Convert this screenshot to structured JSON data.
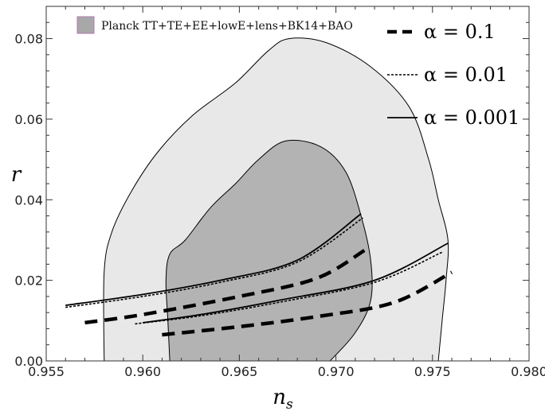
{
  "chart_data": {
    "type": "line",
    "xlabel": "n",
    "xlabel_sub": "s",
    "ylabel": "r",
    "xlim": [
      0.955,
      0.98
    ],
    "ylim": [
      0.0,
      0.088
    ],
    "x_ticks": [
      "0.955",
      "0.960",
      "0.965",
      "0.970",
      "0.975",
      "0.980"
    ],
    "y_ticks": [
      "0.00",
      "0.02",
      "0.04",
      "0.06",
      "0.08"
    ],
    "x_tick_values": [
      0.955,
      0.96,
      0.965,
      0.97,
      0.975,
      0.98
    ],
    "y_tick_values": [
      0.0,
      0.02,
      0.04,
      0.06,
      0.08
    ],
    "grid": false,
    "legend_position": "top",
    "colors": {
      "contour_68": "#b3b3b3",
      "contour_95": "#e8e8e8",
      "legend_swatch": "#a8a8a8",
      "swatch_border": "#b07ab0",
      "line": "#000000"
    },
    "contours": {
      "label": "Planck TT+TE+EE+lowE+lens+BK14+BAO",
      "outer_95": [
        [
          0.958,
          0.0
        ],
        [
          0.958,
          0.022
        ],
        [
          0.9584,
          0.032
        ],
        [
          0.9594,
          0.042
        ],
        [
          0.9608,
          0.052
        ],
        [
          0.9626,
          0.061
        ],
        [
          0.9648,
          0.069
        ],
        [
          0.9665,
          0.077
        ],
        [
          0.9676,
          0.08
        ],
        [
          0.9695,
          0.079
        ],
        [
          0.9718,
          0.073
        ],
        [
          0.9738,
          0.063
        ],
        [
          0.9748,
          0.05
        ],
        [
          0.9753,
          0.04
        ],
        [
          0.9758,
          0.03
        ],
        [
          0.9757,
          0.02
        ],
        [
          0.9755,
          0.01
        ],
        [
          0.9753,
          0.0
        ]
      ],
      "inner_68": [
        [
          0.9614,
          0.0
        ],
        [
          0.9613,
          0.01
        ],
        [
          0.9612,
          0.02
        ],
        [
          0.9614,
          0.0265
        ],
        [
          0.9622,
          0.03
        ],
        [
          0.9635,
          0.038
        ],
        [
          0.9648,
          0.044
        ],
        [
          0.966,
          0.05
        ],
        [
          0.9674,
          0.0546
        ],
        [
          0.9692,
          0.0532
        ],
        [
          0.9705,
          0.047
        ],
        [
          0.9713,
          0.036
        ],
        [
          0.9718,
          0.025
        ],
        [
          0.9718,
          0.015
        ],
        [
          0.971,
          0.007
        ],
        [
          0.9697,
          0.0
        ]
      ]
    },
    "series": [
      {
        "name": "α = 0.1",
        "style": "dashed",
        "curve": "upper",
        "points": [
          [
            0.957,
            0.0095
          ],
          [
            0.96,
            0.0115
          ],
          [
            0.965,
            0.016
          ],
          [
            0.969,
            0.0205
          ],
          [
            0.9715,
            0.0275
          ]
        ]
      },
      {
        "name": "α = 0.1",
        "style": "dashed",
        "curve": "lower",
        "points": [
          [
            0.961,
            0.0065
          ],
          [
            0.965,
            0.0085
          ],
          [
            0.969,
            0.011
          ],
          [
            0.973,
            0.0145
          ],
          [
            0.976,
            0.022
          ]
        ]
      },
      {
        "name": "α = 0.01",
        "style": "dotted",
        "curve": "upper",
        "points": [
          [
            0.956,
            0.0133
          ],
          [
            0.96,
            0.016
          ],
          [
            0.964,
            0.0195
          ],
          [
            0.968,
            0.0245
          ],
          [
            0.9714,
            0.0355
          ]
        ]
      },
      {
        "name": "α = 0.01",
        "style": "dotted",
        "curve": "lower",
        "points": [
          [
            0.9596,
            0.0092
          ],
          [
            0.963,
            0.0112
          ],
          [
            0.967,
            0.0145
          ],
          [
            0.972,
            0.0195
          ],
          [
            0.9755,
            0.027
          ]
        ]
      },
      {
        "name": "α = 0.001",
        "style": "solid",
        "curve": "upper",
        "points": [
          [
            0.956,
            0.0138
          ],
          [
            0.96,
            0.0165
          ],
          [
            0.964,
            0.02
          ],
          [
            0.968,
            0.025
          ],
          [
            0.9713,
            0.0365
          ]
        ]
      },
      {
        "name": "α = 0.001",
        "style": "solid",
        "curve": "lower",
        "points": [
          [
            0.96,
            0.0095
          ],
          [
            0.963,
            0.0115
          ],
          [
            0.967,
            0.015
          ],
          [
            0.972,
            0.02
          ],
          [
            0.9758,
            0.0292
          ]
        ]
      }
    ],
    "legend_alpha": [
      {
        "label": "α = 0.1",
        "style": "dashed"
      },
      {
        "label": "α = 0.01",
        "style": "dotted"
      },
      {
        "label": "α = 0.001",
        "style": "solid"
      }
    ]
  }
}
